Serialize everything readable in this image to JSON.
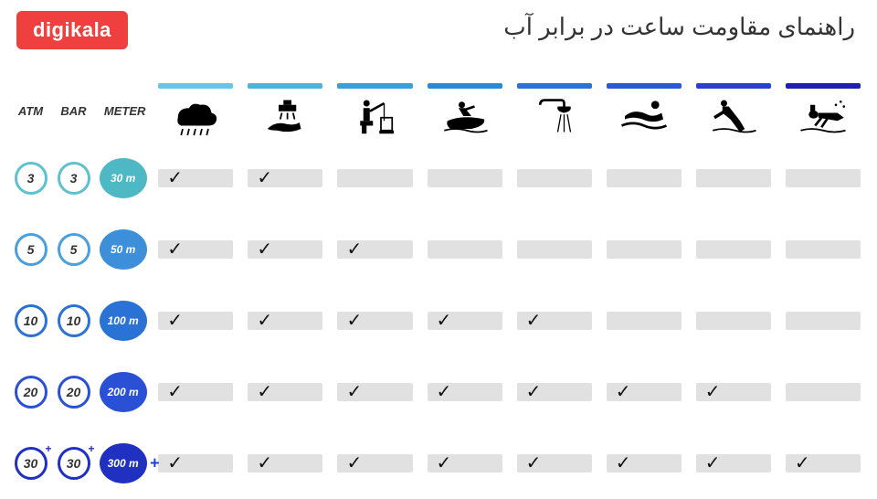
{
  "logo_text": "digikala",
  "title": "راهنمای مقاومت ساعت در برابر آب",
  "colors": {
    "background": "#ffffff",
    "logo_bg": "#ef3f3e",
    "logo_text": "#ffffff",
    "title_text": "#333333",
    "cell_bg": "#e1e1e1",
    "check": "#111111",
    "icon": "#000000"
  },
  "headers": {
    "atm": "ATM",
    "bar": "BAR",
    "meter": "METER"
  },
  "activities": [
    {
      "key": "rain",
      "bar_color": "#66c5e9"
    },
    {
      "key": "wash",
      "bar_color": "#4fb3e0"
    },
    {
      "key": "fishing",
      "bar_color": "#3aa0da"
    },
    {
      "key": "jetski",
      "bar_color": "#2a8ad6"
    },
    {
      "key": "shower",
      "bar_color": "#2a72d6"
    },
    {
      "key": "swim",
      "bar_color": "#2a58d6"
    },
    {
      "key": "snorkel",
      "bar_color": "#2a40d0"
    },
    {
      "key": "dive",
      "bar_color": "#2020b0"
    }
  ],
  "rows": [
    {
      "atm": "3",
      "bar": "3",
      "meter": "30 m",
      "circle_color": "#5fc0d0",
      "meter_bg": "#4fb8c5",
      "plus": false,
      "checks": [
        true,
        true,
        false,
        false,
        false,
        false,
        false,
        false
      ]
    },
    {
      "atm": "5",
      "bar": "5",
      "meter": "50 m",
      "circle_color": "#4a9fdc",
      "meter_bg": "#3c8fd8",
      "plus": false,
      "checks": [
        true,
        true,
        true,
        false,
        false,
        false,
        false,
        false
      ]
    },
    {
      "atm": "10",
      "bar": "10",
      "meter": "100 m",
      "circle_color": "#2a72d6",
      "meter_bg": "#2a72d6",
      "plus": false,
      "checks": [
        true,
        true,
        true,
        true,
        true,
        false,
        false,
        false
      ]
    },
    {
      "atm": "20",
      "bar": "20",
      "meter": "200 m",
      "circle_color": "#2a50d6",
      "meter_bg": "#2a50d6",
      "plus": false,
      "checks": [
        true,
        true,
        true,
        true,
        true,
        true,
        true,
        false
      ]
    },
    {
      "atm": "30",
      "bar": "30",
      "meter": "300 m",
      "circle_color": "#2030c0",
      "meter_bg": "#2030c0",
      "plus": true,
      "checks": [
        true,
        true,
        true,
        true,
        true,
        true,
        true,
        true
      ]
    }
  ],
  "icons": {
    "rain": "<path d='M10 26 Q10 14 24 14 Q28 6 38 10 Q50 8 52 20 Q60 22 58 30 Q56 36 48 36 L14 36 Q8 34 10 26 Z' fill='black'/><line x1='16' y1='40' x2='14' y2='48' stroke='black' stroke-width='2'/><line x1='24' y1='40' x2='22' y2='48' stroke='black' stroke-width='2'/><line x1='32' y1='40' x2='30' y2='48' stroke='black' stroke-width='2'/><line x1='40' y1='40' x2='38' y2='48' stroke='black' stroke-width='2'/><line x1='48' y1='40' x2='46' y2='48' stroke='black' stroke-width='2'/>",
    "wash": "<rect x='30' y='4' width='10' height='6' fill='black'/><rect x='24' y='10' width='22' height='8' fill='black'/><line x1='28' y1='20' x2='26' y2='28' stroke='black' stroke-width='2'/><line x1='35' y1='20' x2='35' y2='28' stroke='black' stroke-width='2'/><line x1='42' y1='20' x2='44' y2='28' stroke='black' stroke-width='2'/><path d='M10 40 Q20 30 34 34 Q44 36 50 32 L52 40 Q38 46 22 42 Q14 42 10 40 Z' fill='black'/>",
    "fishing": "<circle cx='22' cy='8' r='4' fill='black'/><rect x='18' y='14' width='8' height='16' fill='black'/><line x1='26' y1='18' x2='44' y2='8' stroke='black' stroke-width='3'/><line x1='44' y1='8' x2='44' y2='30' stroke='black' stroke-width='1.5'/><rect x='14' y='30' width='16' height='6' fill='black'/><rect x='40' y='26' width='14' height='16' fill='none' stroke='black' stroke-width='2'/><rect x='38' y='42' width='18' height='4' fill='black'/><rect x='16' y='36' width='6' height='10' fill='black'/>",
    "jetski": "<circle cx='28' cy='10' r='4' fill='black'/><path d='M24 14 L32 14 L40 24 L30 24 Z' fill='black'/><line x1='32' y1='16' x2='44' y2='12' stroke='black' stroke-width='3'/><path d='M10 30 Q30 22 56 28 Q58 36 40 40 L14 40 Q8 36 10 30 Z' fill='black'/><path d='M6 42 Q20 38 34 42 Q48 46 60 42' fill='none' stroke='black' stroke-width='2'/>",
    "shower": "<path d='M14 10 Q14 4 20 4 L40 4 Q44 4 44 8 L44 12' fill='none' stroke='black' stroke-width='3'/><path d='M36 12 L52 12 Q54 18 44 20 Q34 18 36 12 Z' fill='black'/><line x1='40' y1='22' x2='36' y2='44' stroke='black' stroke-width='1.5'/><line x1='44' y1='22' x2='44' y2='44' stroke='black' stroke-width='1.5'/><line x1='48' y1='22' x2='52' y2='44' stroke='black' stroke-width='1.5'/>",
    "swim": "<circle cx='46' cy='10' r='5' fill='black'/><path d='M8 24 Q20 14 36 22 Q44 26 54 20 L56 28 Q44 34 30 28 Q18 24 8 28 Z' fill='black'/><path d='M4 36 Q18 30 32 36 Q46 42 60 36' fill='none' stroke='black' stroke-width='3'/>",
    "snorkel": "<circle cx='20' cy='8' r='4' fill='black'/><path d='M18 12 L26 12 L40 30 L46 40 L40 44 L28 28 L18 20 Z' fill='black'/><line x1='24' y1='16' x2='8' y2='26' stroke='black' stroke-width='4'/><path d='M6 42 Q20 38 34 42 Q48 46 60 42' fill='none' stroke='black' stroke-width='2'/>",
    "dive": "<ellipse cx='20' cy='22' rx='6' ry='5' fill='black'/><rect x='16' y='10' width='6' height='8' fill='black'/><path d='M26 20 L50 20 L58 26 L50 30 L26 26 Z' fill='black'/><line x1='30' y1='26' x2='22' y2='36' stroke='black' stroke-width='3'/><line x1='38' y1='26' x2='30' y2='38' stroke='black' stroke-width='3'/><circle cx='48' cy='10' r='1.5' fill='black'/><circle cx='54' cy='6' r='1.5' fill='black'/><circle cx='58' cy='12' r='1.5' fill='black'/><path d='M4 42 Q18 38 32 42 Q46 46 60 42' fill='none' stroke='black' stroke-width='2'/>"
  }
}
